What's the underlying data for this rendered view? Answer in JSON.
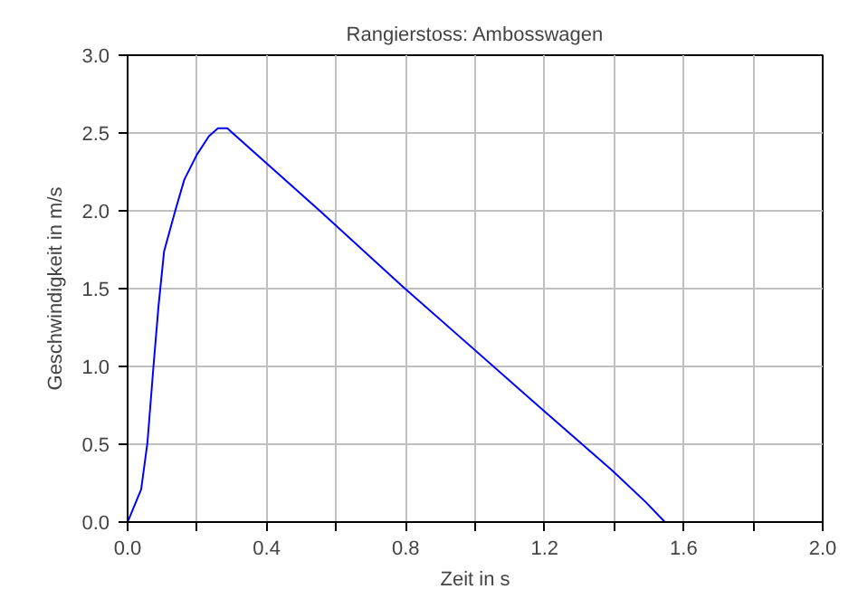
{
  "chart_data": {
    "type": "line",
    "title": "Rangierstoss: Ambosswagen",
    "xlabel": "Zeit in s",
    "ylabel": "Geschwindigkeit in m/s",
    "x": [
      0,
      0.039,
      0.057,
      0.074,
      0.089,
      0.105,
      0.137,
      0.163,
      0.199,
      0.234,
      0.26,
      0.287,
      0.553,
      0.793,
      1.19,
      1.395,
      1.49,
      1.546
    ],
    "series": [
      {
        "color": "#0000ff",
        "values": [
          0,
          0.21,
          0.51,
          0.99,
          1.39,
          1.74,
          2.0,
          2.2,
          2.36,
          2.48,
          2.53,
          2.53,
          2.0,
          1.51,
          0.73,
          0.33,
          0.13,
          0
        ]
      }
    ],
    "xlim": [
      0,
      2.0
    ],
    "ylim": [
      0,
      3.0
    ],
    "xticks": [
      {
        "value": 0,
        "label": "0.0"
      },
      {
        "value": 0.2,
        "label": null
      },
      0.4,
      {
        "value": 0.6,
        "label": null
      },
      0.8,
      {
        "value": 1.0,
        "label": null
      },
      1.2,
      {
        "value": 1.4,
        "label": null
      },
      1.6,
      {
        "value": 1.8,
        "label": null
      },
      {
        "value": 2,
        "label": "2.0"
      }
    ],
    "yticks": [
      {
        "value": 0,
        "label": "0.0"
      },
      0.5,
      {
        "value": 1,
        "label": "1.0"
      },
      1.5,
      {
        "value": 2,
        "label": "2.0"
      },
      2.5,
      {
        "value": 3,
        "label": "3.0"
      }
    ],
    "grid": true,
    "marker": "none",
    "line_style": "solid"
  }
}
